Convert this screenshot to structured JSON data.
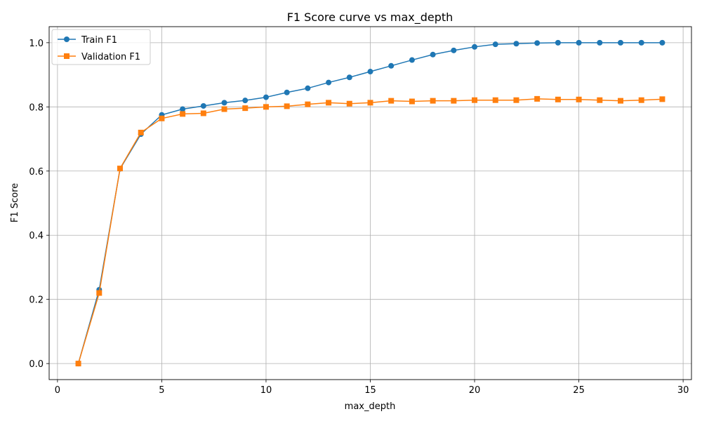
{
  "chart_data": {
    "type": "line",
    "title": "F1 Score curve vs max_depth",
    "xlabel": "max_depth",
    "ylabel": "F1 Score",
    "xlim": [
      -0.4,
      30.4
    ],
    "ylim": [
      -0.05,
      1.05
    ],
    "xticks": [
      0,
      5,
      10,
      15,
      20,
      25,
      30
    ],
    "yticks": [
      0.0,
      0.2,
      0.4,
      0.6,
      0.8,
      1.0
    ],
    "grid": true,
    "legend_position": "top-left",
    "x": [
      1,
      2,
      3,
      4,
      5,
      6,
      7,
      8,
      9,
      10,
      11,
      12,
      13,
      14,
      15,
      16,
      17,
      18,
      19,
      20,
      21,
      22,
      23,
      24,
      25,
      26,
      27,
      28,
      29
    ],
    "series": [
      {
        "name": "Train F1",
        "color": "#1f77b4",
        "marker": "circle",
        "values": [
          0.0,
          0.23,
          0.607,
          0.715,
          0.775,
          0.793,
          0.803,
          0.813,
          0.82,
          0.83,
          0.845,
          0.858,
          0.876,
          0.892,
          0.91,
          0.928,
          0.946,
          0.963,
          0.976,
          0.987,
          0.995,
          0.997,
          0.999,
          1.0,
          1.0,
          1.0,
          1.0,
          1.0,
          1.0
        ]
      },
      {
        "name": "Validation F1",
        "color": "#ff7f0e",
        "marker": "square",
        "values": [
          0.0,
          0.22,
          0.608,
          0.72,
          0.764,
          0.778,
          0.78,
          0.793,
          0.796,
          0.8,
          0.802,
          0.808,
          0.813,
          0.81,
          0.813,
          0.819,
          0.817,
          0.819,
          0.819,
          0.821,
          0.821,
          0.821,
          0.825,
          0.823,
          0.823,
          0.821,
          0.819,
          0.821,
          0.824
        ]
      }
    ]
  }
}
